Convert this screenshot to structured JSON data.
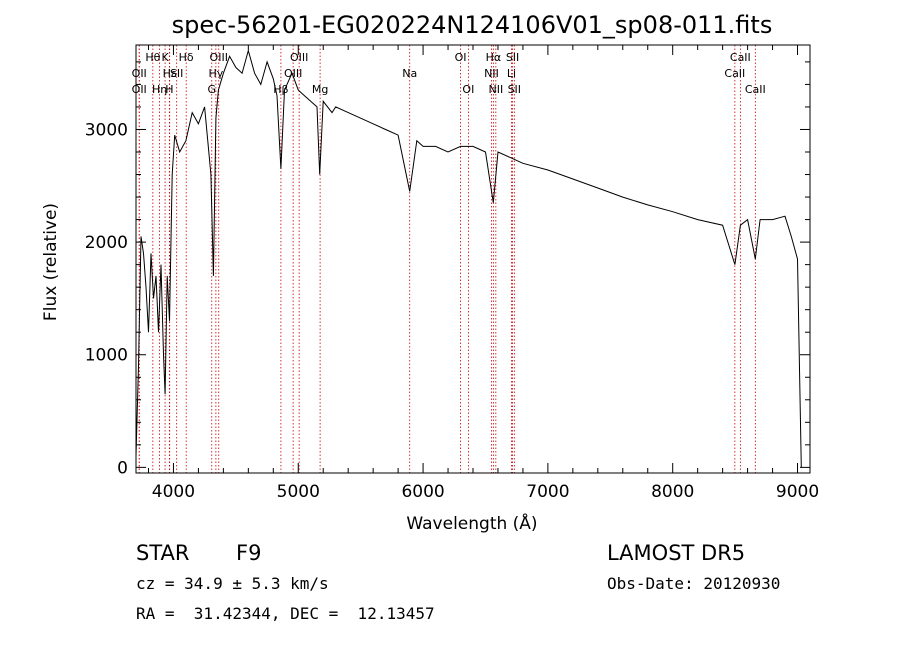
{
  "chart_data": {
    "type": "line",
    "title": "spec-56201-EG020224N124106V01_sp08-011.fits",
    "xlabel": "Wavelength (Å)",
    "ylabel": "Flux (relative)",
    "xlim": [
      3700,
      9100
    ],
    "ylim": [
      -50,
      3750
    ],
    "x_ticks": [
      4000,
      5000,
      6000,
      7000,
      8000,
      9000
    ],
    "y_ticks": [
      0,
      1000,
      2000,
      3000
    ],
    "grid": false,
    "series": [
      {
        "x": [
          3700,
          3720,
          3740,
          3760,
          3780,
          3800,
          3820,
          3840,
          3860,
          3880,
          3900,
          3920,
          3933,
          3950,
          3968,
          3990,
          4010,
          4050,
          4100,
          4150,
          4200,
          4250,
          4300,
          4320,
          4340,
          4360,
          4400,
          4450,
          4500,
          4550,
          4600,
          4650,
          4700,
          4750,
          4800,
          4830,
          4861,
          4890,
          4950,
          5000,
          5050,
          5100,
          5150,
          5172,
          5200,
          5270,
          5300,
          5400,
          5500,
          5600,
          5700,
          5800,
          5893,
          5950,
          6000,
          6100,
          6200,
          6300,
          6400,
          6500,
          6563,
          6600,
          6700,
          6800,
          7000,
          7200,
          7400,
          7600,
          7800,
          8000,
          8200,
          8400,
          8498,
          8542,
          8600,
          8662,
          8700,
          8800,
          8900,
          8950,
          9000,
          9030
        ],
        "y": [
          100,
          900,
          2050,
          1900,
          1600,
          1200,
          1900,
          1500,
          1700,
          1200,
          1800,
          1000,
          650,
          1700,
          1300,
          2600,
          2950,
          2800,
          2900,
          3150,
          3050,
          3200,
          2600,
          1700,
          3100,
          3350,
          3500,
          3650,
          3550,
          3500,
          3700,
          3500,
          3400,
          3600,
          3450,
          3300,
          2650,
          3350,
          3500,
          3350,
          3300,
          3250,
          3200,
          2600,
          3250,
          3150,
          3200,
          3150,
          3100,
          3050,
          3000,
          2950,
          2450,
          2900,
          2850,
          2850,
          2800,
          2850,
          2850,
          2800,
          2350,
          2800,
          2750,
          2700,
          2640,
          2560,
          2480,
          2400,
          2330,
          2270,
          2200,
          2150,
          1800,
          2150,
          2200,
          1850,
          2200,
          2200,
          2230,
          2050,
          1850,
          0
        ]
      }
    ],
    "line_marks": [
      {
        "wl": 3835,
        "label": "Hθ",
        "row": 1
      },
      {
        "wl": 3726,
        "label": "OII",
        "row": 2
      },
      {
        "wl": 3726,
        "label": "OII",
        "row": 3
      },
      {
        "wl": 3889,
        "label": "Hη",
        "row": 3
      },
      {
        "wl": 3933,
        "label": "K",
        "row": 1
      },
      {
        "wl": 3968,
        "label": "H",
        "row": 3
      },
      {
        "wl": 3970,
        "label": "Hε",
        "row": 2
      },
      {
        "wl": 4026,
        "label": "SII",
        "row": 2
      },
      {
        "wl": 4102,
        "label": "Hδ",
        "row": 1
      },
      {
        "wl": 4340,
        "label": "Hγ",
        "row": 2
      },
      {
        "wl": 4363,
        "label": "OIII",
        "row": 1
      },
      {
        "wl": 4307,
        "label": "G",
        "row": 3
      },
      {
        "wl": 4861,
        "label": "Hβ",
        "row": 3
      },
      {
        "wl": 4959,
        "label": "OIII",
        "row": 2
      },
      {
        "wl": 5007,
        "label": "OIII",
        "row": 1
      },
      {
        "wl": 5175,
        "label": "Mg",
        "row": 3
      },
      {
        "wl": 5893,
        "label": "Na",
        "row": 2
      },
      {
        "wl": 6300,
        "label": "OI",
        "row": 1
      },
      {
        "wl": 6363,
        "label": "OI",
        "row": 3
      },
      {
        "wl": 6548,
        "label": "NII",
        "row": 2
      },
      {
        "wl": 6563,
        "label": "Hα",
        "row": 1
      },
      {
        "wl": 6583,
        "label": "NII",
        "row": 3
      },
      {
        "wl": 6708,
        "label": "Li",
        "row": 2
      },
      {
        "wl": 6717,
        "label": "SII",
        "row": 1
      },
      {
        "wl": 6731,
        "label": "SII",
        "row": 3
      },
      {
        "wl": 8498,
        "label": "CaII",
        "row": 2
      },
      {
        "wl": 8542,
        "label": "CaII",
        "row": 1
      },
      {
        "wl": 8662,
        "label": "CaII",
        "row": 3
      }
    ]
  },
  "info": {
    "object_class": "STAR",
    "subclass": "F9",
    "survey": "LAMOST DR5",
    "cz": "cz = 34.9 ± 5.3 km/s",
    "obs_date": "Obs-Date: 20120930",
    "coords": "RA =  31.42344, DEC =  12.13457"
  },
  "colors": {
    "spectrum": "#000000",
    "line_marker": "#cc0000",
    "background": "#ffffff"
  }
}
